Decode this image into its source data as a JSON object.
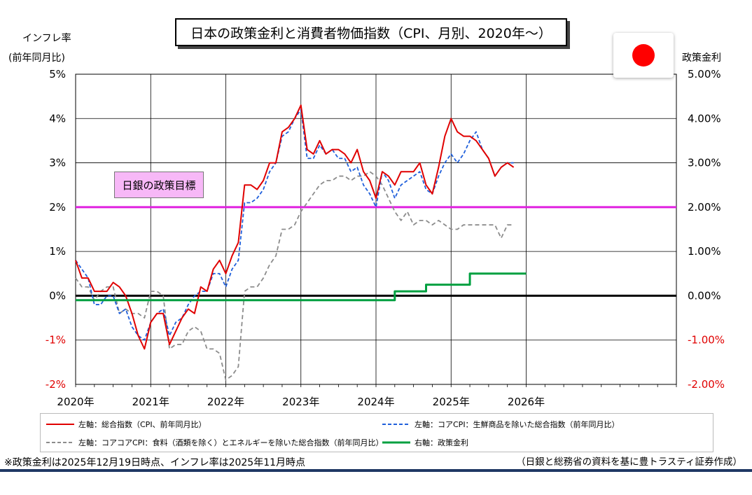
{
  "title": "日本の政策金利と消費者物価指数（CPI、月別、2020年～）",
  "left_axis_title": [
    "インフレ率",
    "(前年同月比)"
  ],
  "right_axis_title": "政策金利",
  "boj_target_label": "日銀の政策目標",
  "note": "※政策金利は2025年12月19日時点、インフレ率は2025年11月時点",
  "source": "（日銀と総務省の資料を基に豊トラスティ証券作成）",
  "colors": {
    "headline": "#e00000",
    "core": "#1f5fdb",
    "corecore": "#8c8c8c",
    "policy": "#00a040",
    "target": "#e020e0",
    "target_box": "#f7b8f7",
    "zero": "#000000",
    "flag": "#ff0000",
    "neg_tick": "#e00000",
    "bottom_rule": "#1f3864"
  },
  "icons": {
    "flag": "japan-flag-icon"
  },
  "chart_data": {
    "type": "line",
    "x_labels": [
      "2020年",
      "2021年",
      "2022年",
      "2023年",
      "2024年",
      "2025年",
      "2026年"
    ],
    "x_start": "2020-01",
    "left_ylim": [
      -2,
      5
    ],
    "left_ticks": [
      "-2%",
      "-1%",
      "0%",
      "1%",
      "2%",
      "3%",
      "4%",
      "5%"
    ],
    "right_ylim": [
      -2,
      5
    ],
    "right_ticks": [
      "-2.00%",
      "-1.00%",
      "0.00%",
      "1.00%",
      "2.00%",
      "3.00%",
      "4.00%",
      "5.00%"
    ],
    "boj_target": 2,
    "grid": true,
    "series": [
      {
        "name": "左軸：総合指数（CPI、前年同月比）",
        "axis": "left",
        "style": "solid",
        "values": [
          0.8,
          0.4,
          0.4,
          0.1,
          0.1,
          0.1,
          0.3,
          0.2,
          0.0,
          -0.4,
          -0.9,
          -1.2,
          -0.6,
          -0.4,
          -0.4,
          -1.1,
          -0.8,
          -0.5,
          -0.3,
          -0.4,
          0.2,
          0.1,
          0.6,
          0.8,
          0.5,
          0.9,
          1.2,
          2.5,
          2.5,
          2.4,
          2.6,
          3.0,
          3.0,
          3.7,
          3.8,
          4.0,
          4.3,
          3.3,
          3.2,
          3.5,
          3.2,
          3.3,
          3.3,
          3.2,
          3.0,
          3.3,
          2.8,
          2.6,
          2.2,
          2.8,
          2.7,
          2.5,
          2.8,
          2.8,
          2.8,
          3.0,
          2.5,
          2.3,
          2.9,
          3.6,
          4.0,
          3.7,
          3.6,
          3.6,
          3.5,
          3.3,
          3.1,
          2.7,
          2.9,
          3.0,
          2.9
        ]
      },
      {
        "name": "左軸：コアCPI：生鮮商品を除いた総合指数（前年同月比）",
        "axis": "left",
        "style": "dashed",
        "values": [
          0.8,
          0.6,
          0.4,
          -0.2,
          -0.2,
          0.0,
          0.0,
          -0.4,
          -0.3,
          -0.7,
          -0.9,
          -1.0,
          -0.6,
          -0.4,
          -0.3,
          -0.9,
          -0.6,
          -0.5,
          -0.2,
          0.0,
          0.1,
          0.1,
          0.5,
          0.5,
          0.2,
          0.6,
          0.8,
          2.1,
          2.1,
          2.2,
          2.4,
          2.8,
          3.0,
          3.6,
          3.7,
          4.0,
          4.2,
          3.1,
          3.1,
          3.4,
          3.2,
          3.3,
          3.1,
          3.1,
          2.8,
          2.9,
          2.5,
          2.3,
          2.0,
          2.8,
          2.6,
          2.2,
          2.5,
          2.6,
          2.7,
          2.8,
          2.4,
          2.3,
          2.7,
          3.0,
          3.2,
          3.0,
          3.2,
          3.5,
          3.7,
          3.3,
          3.1,
          2.7,
          2.9,
          3.0,
          3.0
        ]
      },
      {
        "name": "左軸：コアコアCPI：食料（酒類を除く）とエネルギーを除いた総合指数（前年同月比）",
        "axis": "left",
        "style": "dashed",
        "values": [
          0.4,
          0.2,
          0.2,
          -0.1,
          0.1,
          0.2,
          0.2,
          -0.4,
          -0.3,
          -0.4,
          -0.4,
          -0.5,
          0.1,
          0.1,
          0.0,
          -1.2,
          -1.1,
          -1.1,
          -0.8,
          -0.7,
          -0.8,
          -1.2,
          -1.2,
          -1.3,
          -1.9,
          -1.8,
          -1.6,
          0.1,
          0.2,
          0.2,
          0.4,
          0.7,
          0.9,
          1.5,
          1.5,
          1.6,
          1.9,
          2.1,
          2.3,
          2.5,
          2.6,
          2.6,
          2.7,
          2.7,
          2.6,
          2.7,
          2.7,
          2.8,
          2.7,
          2.5,
          2.2,
          1.9,
          1.7,
          1.9,
          1.6,
          1.7,
          1.7,
          1.6,
          1.7,
          1.6,
          1.5,
          1.5,
          1.6,
          1.6,
          1.6,
          1.6,
          1.6,
          1.6,
          1.3,
          1.6,
          1.6
        ]
      },
      {
        "name": "右軸：政策金利",
        "axis": "right",
        "style": "solid",
        "values": [
          -0.1,
          -0.1,
          -0.1,
          -0.1,
          -0.1,
          -0.1,
          -0.1,
          -0.1,
          -0.1,
          -0.1,
          -0.1,
          -0.1,
          -0.1,
          -0.1,
          -0.1,
          -0.1,
          -0.1,
          -0.1,
          -0.1,
          -0.1,
          -0.1,
          -0.1,
          -0.1,
          -0.1,
          -0.1,
          -0.1,
          -0.1,
          -0.1,
          -0.1,
          -0.1,
          -0.1,
          -0.1,
          -0.1,
          -0.1,
          -0.1,
          -0.1,
          -0.1,
          -0.1,
          -0.1,
          -0.1,
          -0.1,
          -0.1,
          -0.1,
          -0.1,
          -0.1,
          -0.1,
          -0.1,
          -0.1,
          -0.1,
          -0.1,
          -0.1,
          0.1,
          0.1,
          0.1,
          0.1,
          0.1,
          0.25,
          0.25,
          0.25,
          0.25,
          0.25,
          0.25,
          0.25,
          0.5,
          0.5,
          0.5,
          0.5,
          0.5,
          0.5,
          0.5,
          0.5,
          0.5,
          0.5
        ]
      }
    ]
  }
}
